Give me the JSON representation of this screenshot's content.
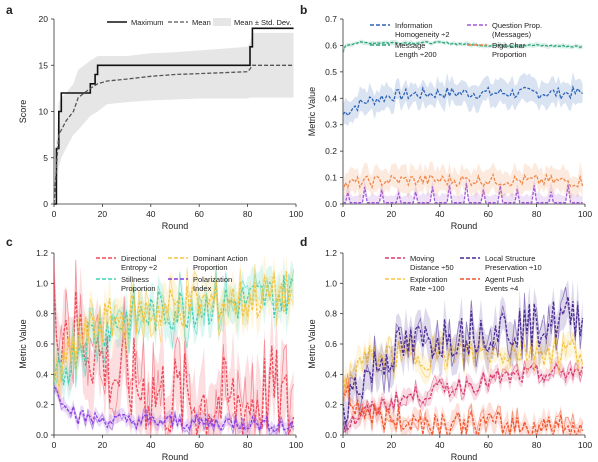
{
  "chart_data": [
    {
      "panel": "a",
      "type": "line",
      "xlabel": "Round",
      "ylabel": "Score",
      "xlim": [
        0,
        100
      ],
      "ylim": [
        0,
        20
      ],
      "xticks": [
        "0",
        "20",
        "40",
        "60",
        "80",
        "100"
      ],
      "yticks": [
        "0",
        "5",
        "10",
        "15",
        "20"
      ],
      "legend_position": "top",
      "series": [
        {
          "name": "Maximum",
          "style": "solid",
          "color": "#111111",
          "x": [
            0,
            1,
            2,
            3,
            5,
            10,
            15,
            16,
            17,
            18,
            30,
            50,
            80,
            81,
            82,
            99
          ],
          "y": [
            0,
            6,
            10,
            12,
            12,
            12,
            13,
            13,
            14,
            15,
            15,
            15,
            15,
            17,
            19,
            19
          ]
        },
        {
          "name": "Mean",
          "style": "dashed",
          "color": "#555555",
          "x": [
            0,
            1,
            2,
            3,
            5,
            8,
            10,
            15,
            18,
            22,
            30,
            40,
            50,
            60,
            70,
            80,
            81,
            82,
            99
          ],
          "y": [
            0,
            4,
            7.5,
            8,
            9,
            10,
            11.5,
            12.5,
            13,
            13.3,
            13.5,
            13.8,
            14,
            14.1,
            14.2,
            14.3,
            14.6,
            15,
            15
          ]
        },
        {
          "name": "Mean ± Std. Dev.",
          "style": "band",
          "color": "#cccccc",
          "x": [
            0,
            1,
            2,
            3,
            5,
            8,
            10,
            15,
            18,
            22,
            30,
            40,
            50,
            60,
            70,
            80,
            81,
            82,
            99
          ],
          "lower": [
            0,
            1.5,
            4,
            5,
            6,
            7.5,
            8,
            9.5,
            10,
            10.8,
            11,
            11.2,
            11.3,
            11.4,
            11.4,
            11.4,
            11.5,
            11.5,
            11.5
          ],
          "upper": [
            0,
            6.5,
            11,
            11.5,
            12,
            13,
            14.5,
            15.5,
            16,
            16,
            16,
            16.3,
            16.4,
            16.6,
            16.8,
            17,
            17.5,
            18.5,
            18.5
          ]
        }
      ]
    },
    {
      "panel": "b",
      "type": "line",
      "xlabel": "Round",
      "ylabel": "Metric Value",
      "xlim": [
        0,
        100
      ],
      "ylim": [
        0,
        0.7
      ],
      "xticks": [
        "0",
        "20",
        "40",
        "60",
        "80",
        "100"
      ],
      "yticks": [
        "0.0",
        "0.1",
        "0.2",
        "0.3",
        "0.4",
        "0.5",
        "0.6",
        "0.7"
      ],
      "legend_position": "top",
      "series": [
        {
          "name": "Information Homogeneity ÷2",
          "color": "#2f63b6",
          "base": [
            [
              0,
              0.34
            ],
            [
              5,
              0.37
            ],
            [
              10,
              0.39
            ],
            [
              20,
              0.41
            ],
            [
              40,
              0.42
            ],
            [
              60,
              0.42
            ],
            [
              80,
              0.42
            ],
            [
              99,
              0.42
            ]
          ],
          "spread": 0.045
        },
        {
          "name": "Message Length ÷200",
          "color": "#2aa37a",
          "base": [
            [
              0,
              0.57
            ],
            [
              1,
              0.6
            ],
            [
              5,
              0.61
            ],
            [
              20,
              0.61
            ],
            [
              40,
              0.61
            ],
            [
              60,
              0.6
            ],
            [
              80,
              0.6
            ],
            [
              99,
              0.595
            ]
          ],
          "spread": 0.008
        },
        {
          "name": "Question Prop. (Messages)",
          "color": "#a259d9",
          "base": [
            [
              0,
              0.01
            ],
            [
              99,
              0.01
            ]
          ],
          "spread": 0.03
        },
        {
          "name": "Digit Char Proportion",
          "color": "#f0884b",
          "base": [
            [
              0,
              0.07
            ],
            [
              5,
              0.08
            ],
            [
              20,
              0.09
            ],
            [
              40,
              0.09
            ],
            [
              60,
              0.09
            ],
            [
              80,
              0.088
            ],
            [
              99,
              0.085
            ]
          ],
          "spread": 0.045
        }
      ]
    },
    {
      "panel": "c",
      "type": "line",
      "xlabel": "Round",
      "ylabel": "Metric Value",
      "xlim": [
        0,
        100
      ],
      "ylim": [
        0,
        1.2
      ],
      "xticks": [
        "0",
        "20",
        "40",
        "60",
        "80",
        "100"
      ],
      "yticks": [
        "0.0",
        "0.2",
        "0.4",
        "0.6",
        "0.8",
        "1.0",
        "1.2"
      ],
      "legend_position": "top",
      "series": [
        {
          "name": "Directional Entropy ÷2",
          "color": "#ee4a5a",
          "base": [
            [
              0,
              0.78
            ],
            [
              5,
              0.75
            ],
            [
              15,
              0.6
            ],
            [
              25,
              0.4
            ],
            [
              40,
              0.28
            ],
            [
              60,
              0.22
            ],
            [
              80,
              0.2
            ],
            [
              90,
              0.3
            ],
            [
              99,
              0.1
            ]
          ],
          "spread": 0.25
        },
        {
          "name": "Stillness Proportion",
          "color": "#3fd1b7",
          "base": [
            [
              0,
              0.3
            ],
            [
              5,
              0.45
            ],
            [
              10,
              0.6
            ],
            [
              20,
              0.72
            ],
            [
              40,
              0.8
            ],
            [
              60,
              0.86
            ],
            [
              80,
              0.88
            ],
            [
              99,
              0.94
            ]
          ],
          "spread": 0.12
        },
        {
          "name": "Dominant Action Proportion",
          "color": "#f5c542",
          "base": [
            [
              0,
              0.32
            ],
            [
              5,
              0.47
            ],
            [
              10,
              0.62
            ],
            [
              20,
              0.74
            ],
            [
              40,
              0.82
            ],
            [
              60,
              0.87
            ],
            [
              80,
              0.89
            ],
            [
              99,
              0.95
            ]
          ],
          "spread": 0.12
        },
        {
          "name": "Polarization Index",
          "color": "#8a3fe0",
          "base": [
            [
              0,
              0.3
            ],
            [
              5,
              0.22
            ],
            [
              10,
              0.12
            ],
            [
              20,
              0.1
            ],
            [
              40,
              0.09
            ],
            [
              60,
              0.08
            ],
            [
              80,
              0.08
            ],
            [
              99,
              0.06
            ]
          ],
          "spread": 0.04
        }
      ]
    },
    {
      "panel": "d",
      "type": "line",
      "xlabel": "Round",
      "ylabel": "Metric Value",
      "xlim": [
        0,
        100
      ],
      "ylim": [
        0,
        1.2
      ],
      "xticks": [
        "0",
        "20",
        "40",
        "60",
        "80",
        "100"
      ],
      "yticks": [
        "0.0",
        "0.2",
        "0.4",
        "0.6",
        "0.8",
        "1.0",
        "1.2"
      ],
      "legend_position": "top",
      "series": [
        {
          "name": "Moving Distance ÷50",
          "color": "#d83a6b",
          "base": [
            [
              0,
              0.05
            ],
            [
              10,
              0.15
            ],
            [
              20,
              0.22
            ],
            [
              40,
              0.3
            ],
            [
              60,
              0.36
            ],
            [
              80,
              0.4
            ],
            [
              99,
              0.42
            ]
          ],
          "spread": 0.05
        },
        {
          "name": "Exploration Rate ÷100",
          "color": "#f5c542",
          "base": [
            [
              0,
              0.25
            ],
            [
              5,
              0.45
            ],
            [
              10,
              0.5
            ],
            [
              20,
              0.52
            ],
            [
              40,
              0.53
            ],
            [
              60,
              0.55
            ],
            [
              80,
              0.56
            ],
            [
              99,
              0.56
            ]
          ],
          "spread": 0.08
        },
        {
          "name": "Local Structure Preservation ÷10",
          "color": "#4b2a93",
          "base": [
            [
              0,
              0.2
            ],
            [
              10,
              0.4
            ],
            [
              20,
              0.55
            ],
            [
              40,
              0.65
            ],
            [
              60,
              0.7
            ],
            [
              80,
              0.72
            ],
            [
              99,
              0.8
            ]
          ],
          "spread": 0.12
        },
        {
          "name": "Agent Push Events ÷4",
          "color": "#f2552c",
          "base": [
            [
              0,
              0.3
            ],
            [
              5,
              0.2
            ],
            [
              10,
              0.15
            ],
            [
              20,
              0.1
            ],
            [
              40,
              0.08
            ],
            [
              60,
              0.07
            ],
            [
              80,
              0.06
            ],
            [
              99,
              0.05
            ]
          ],
          "spread": 0.07
        }
      ]
    }
  ]
}
